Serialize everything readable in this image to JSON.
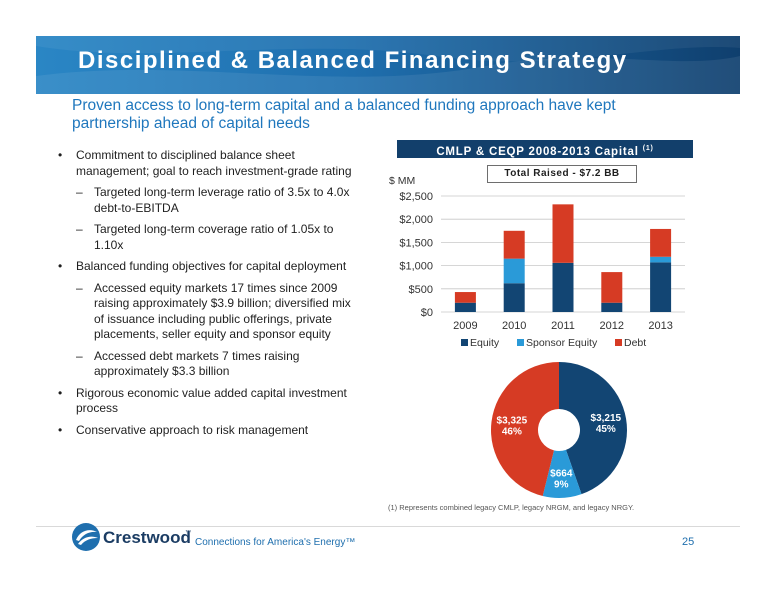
{
  "header": {
    "title": "Disciplined & Balanced Financing Strategy",
    "subtitle": "Proven access to long-term capital and a balanced funding approach have kept partnership ahead of capital needs"
  },
  "bullets": [
    {
      "level": 1,
      "marker": "•",
      "text": "Commitment to disciplined balance sheet management; goal to reach investment-grade rating"
    },
    {
      "level": 2,
      "marker": "–",
      "text": "Targeted long-term leverage ratio of 3.5x to 4.0x debt-to-EBITDA"
    },
    {
      "level": 2,
      "marker": "–",
      "text": "Targeted long-term coverage ratio of 1.05x to 1.10x"
    },
    {
      "level": 1,
      "marker": "•",
      "text": "Balanced funding objectives for capital deployment"
    },
    {
      "level": 2,
      "marker": "–",
      "text": "Accessed equity markets 17 times since 2009 raising approximately $3.9 billion; diversified mix of issuance including public offerings, private placements, seller equity and sponsor equity"
    },
    {
      "level": 2,
      "marker": "–",
      "text": "Accessed debt markets 7 times raising approximately $3.3 billion"
    },
    {
      "level": 1,
      "marker": "•",
      "text": "Rigorous economic value added capital investment process"
    },
    {
      "level": 1,
      "marker": "•",
      "text": "Conservative approach to risk management"
    }
  ],
  "chart_panel": {
    "header": "CMLP & CEQP 2008-2013 Capital",
    "header_sup": "(1)",
    "total_raised": "Total Raised - $7.2 BB",
    "footnote": "(1)   Represents combined legacy CMLP, legacy NRGM, and legacy NRGY."
  },
  "chart_data": [
    {
      "type": "bar",
      "stacked": true,
      "ylabel": "$ MM",
      "categories": [
        "2009",
        "2010",
        "2011",
        "2012",
        "2013"
      ],
      "ylim": [
        0,
        2500
      ],
      "yticks": [
        "$0",
        "$500",
        "$1,000",
        "$1,500",
        "$2,000",
        "$2,500"
      ],
      "ytick_values": [
        0,
        500,
        1000,
        1500,
        2000,
        2500
      ],
      "grid": true,
      "legend_position": "bottom",
      "series": [
        {
          "name": "Equity",
          "color": "#124573",
          "values": [
            200,
            620,
            1060,
            200,
            1070
          ]
        },
        {
          "name": "Sponsor Equity",
          "color": "#2a9ad8",
          "values": [
            0,
            530,
            0,
            0,
            120
          ]
        },
        {
          "name": "Debt",
          "color": "#d63b24",
          "values": [
            230,
            600,
            1260,
            660,
            600
          ]
        }
      ]
    },
    {
      "type": "pie",
      "donut": true,
      "slices": [
        {
          "label": "$3,215",
          "pct": "45%",
          "value": 3215,
          "color": "#124573"
        },
        {
          "label": "$664",
          "pct": "9%",
          "value": 664,
          "color": "#2a9ad8"
        },
        {
          "label": "$3,325",
          "pct": "46%",
          "value": 3325,
          "color": "#d63b24"
        }
      ]
    }
  ],
  "footer": {
    "logo_text": "Crestwood",
    "logo_tm": "™",
    "tagline": "Connections for America's Energy™",
    "page_number": "25"
  },
  "colors": {
    "brand_blue": "#1f6fae",
    "navy": "#123f6b",
    "accent_red": "#d63b24"
  }
}
